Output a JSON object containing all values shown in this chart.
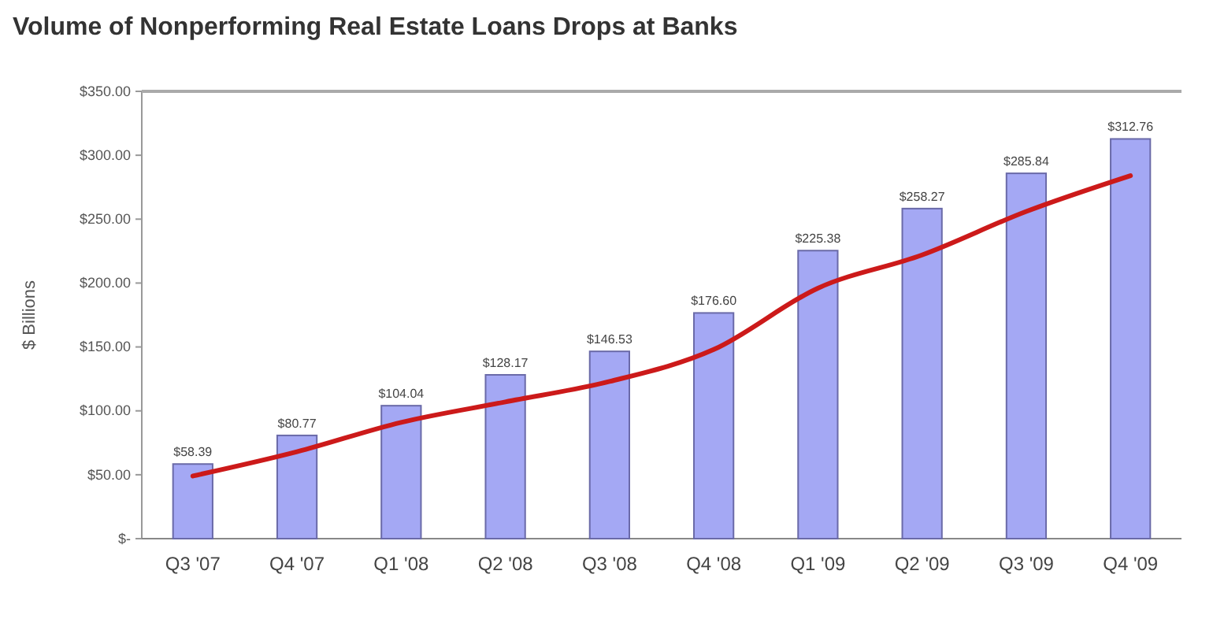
{
  "chart_data": {
    "type": "bar",
    "title": "Volume of Nonperforming Real Estate Loans Drops at Banks",
    "ylabel": "$ Billions",
    "categories": [
      "Q3 '07",
      "Q4 '07",
      "Q1 '08",
      "Q2 '08",
      "Q3 '08",
      "Q4 '08",
      "Q1 '09",
      "Q2 '09",
      "Q3 '09",
      "Q4 '09"
    ],
    "series": [
      {
        "color": "#a4a8f4",
        "values": [
          58.39,
          80.77,
          104.04,
          128.17,
          146.53,
          176.6,
          225.38,
          258.27,
          285.84,
          312.76
        ],
        "value_labels": [
          "$58.39",
          "$80.77",
          "$104.04",
          "$128.17",
          "$146.53",
          "$176.60",
          "$225.38",
          "$258.27",
          "$285.84",
          "$312.76"
        ]
      },
      {
        "type": "line",
        "color": "#cc1a1a",
        "values": [
          49,
          68,
          91,
          107,
          123,
          148,
          196,
          222,
          256,
          284
        ]
      }
    ],
    "ylim": [
      0,
      350
    ],
    "yticks": [
      {
        "value": 0,
        "label": "$-"
      },
      {
        "value": 50,
        "label": "$50.00"
      },
      {
        "value": 100,
        "label": "$100.00"
      },
      {
        "value": 150,
        "label": "$150.00"
      },
      {
        "value": 200,
        "label": "$200.00"
      },
      {
        "value": 250,
        "label": "$250.00"
      },
      {
        "value": 300,
        "label": "$300.00"
      },
      {
        "value": 350,
        "label": "$350.00"
      }
    ],
    "grid": false,
    "line_style": "solid",
    "marker": "none"
  }
}
